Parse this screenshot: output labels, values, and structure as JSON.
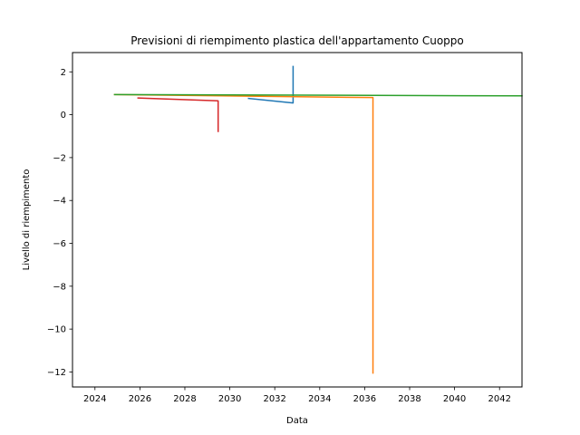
{
  "chart_data": {
    "type": "line",
    "title": "Previsioni di riempimento plastica dell'appartamento Cuoppo",
    "xlabel": "Data",
    "ylabel": "Livello di riempimento",
    "xlim": [
      "2023-01-01",
      "2043-01-01"
    ],
    "ylim": [
      -12.7,
      2.9
    ],
    "x_ticks": [
      "2024",
      "2026",
      "2028",
      "2030",
      "2032",
      "2034",
      "2036",
      "2038",
      "2040",
      "2042"
    ],
    "y_ticks": [
      2,
      0,
      -2,
      -4,
      -6,
      -8,
      -10,
      -12
    ],
    "y_tick_labels": [
      "2",
      "0",
      "−2",
      "−4",
      "−6",
      "−8",
      "−10",
      "−12"
    ],
    "grid": false,
    "series": [
      {
        "color": "#1f77b4",
        "points": [
          [
            "2030-11-01",
            0.76
          ],
          [
            "2032-10-25",
            0.55
          ],
          [
            "2032-10-25",
            2.25
          ]
        ]
      },
      {
        "color": "#ff7f0e",
        "points": [
          [
            "2024-11-15",
            0.94
          ],
          [
            "2036-05-15",
            0.8
          ],
          [
            "2036-05-15",
            -12.05
          ]
        ]
      },
      {
        "color": "#2ca02c",
        "points": [
          [
            "2024-11-15",
            0.94
          ],
          [
            "2043-01-01",
            0.88
          ]
        ]
      },
      {
        "color": "#d62728",
        "points": [
          [
            "2025-12-01",
            0.78
          ],
          [
            "2029-06-25",
            0.65
          ],
          [
            "2029-06-25",
            -0.78
          ]
        ]
      }
    ]
  }
}
